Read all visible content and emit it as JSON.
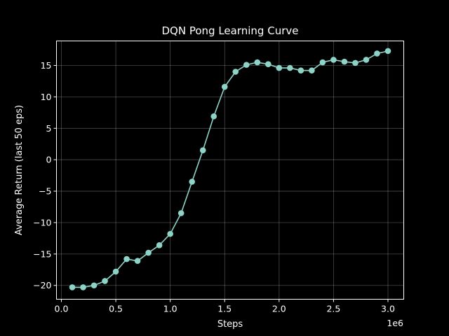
{
  "chart_data": {
    "type": "line",
    "title": "DQN Pong Learning Curve",
    "xlabel": "Steps",
    "ylabel": "Average Return (last 50 eps)",
    "x_offset_label": "1e6",
    "xlim": [
      -0.045,
      3.145
    ],
    "ylim": [
      -22.2,
      18.9
    ],
    "xticks": [
      0.0,
      0.5,
      1.0,
      1.5,
      2.0,
      2.5,
      3.0
    ],
    "xtick_labels": [
      "0.0",
      "0.5",
      "1.0",
      "1.5",
      "2.0",
      "2.5",
      "3.0"
    ],
    "yticks": [
      -20,
      -15,
      -10,
      -5,
      0,
      5,
      10,
      15
    ],
    "ytick_labels": [
      "−20",
      "−15",
      "−10",
      "−5",
      "0",
      "5",
      "10",
      "15"
    ],
    "grid": true,
    "color": "#8dd3c7",
    "series": [
      {
        "x": [
          0.1,
          0.2,
          0.3,
          0.4,
          0.5,
          0.6,
          0.7,
          0.8,
          0.9,
          1.0,
          1.1,
          1.2,
          1.3,
          1.4,
          1.5,
          1.6,
          1.7,
          1.8,
          1.9,
          2.0,
          2.1,
          2.2,
          2.3,
          2.4,
          2.5,
          2.6,
          2.7,
          2.8,
          2.9,
          3.0
        ],
        "y": [
          -20.3,
          -20.3,
          -20.0,
          -19.3,
          -17.8,
          -15.8,
          -16.1,
          -14.8,
          -13.6,
          -11.8,
          -8.5,
          -3.5,
          1.5,
          6.9,
          11.6,
          14.0,
          15.1,
          15.5,
          15.2,
          14.6,
          14.6,
          14.2,
          14.2,
          15.5,
          15.9,
          15.6,
          15.4,
          15.9,
          16.9,
          17.3
        ]
      }
    ]
  }
}
